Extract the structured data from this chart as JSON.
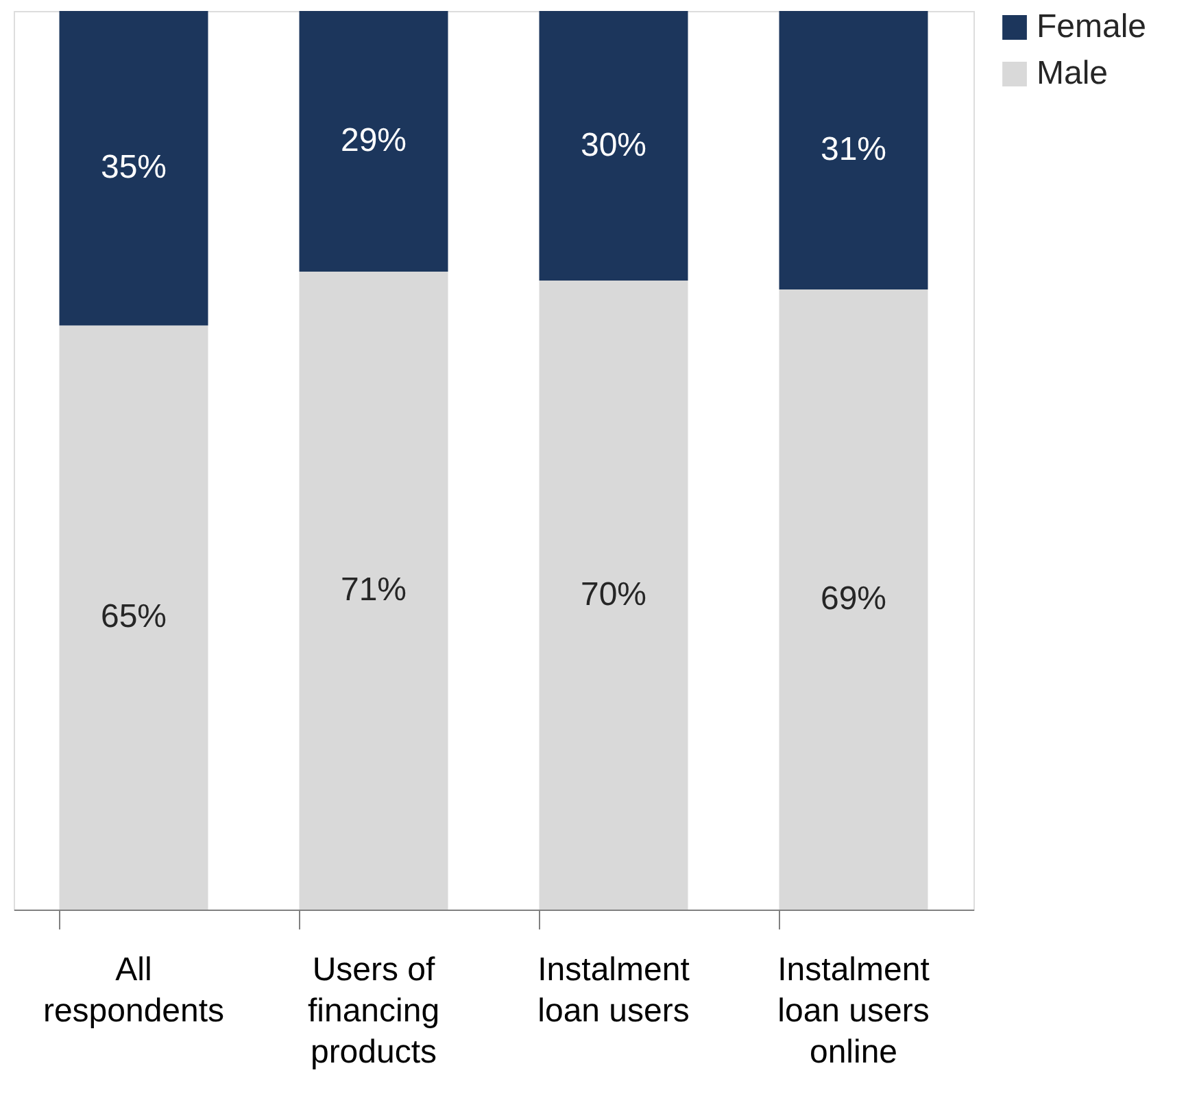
{
  "chart_data": {
    "type": "bar",
    "stacked": true,
    "legend": "right",
    "categories": [
      "All respondents",
      "Users of financing products",
      "Instalment loan users",
      "Instalment loan users online"
    ],
    "series": [
      {
        "name": "Male",
        "color": "#d9d9d9",
        "values": [
          65,
          71,
          70,
          69
        ],
        "value_labels": [
          "65%",
          "71%",
          "70%",
          "69%"
        ]
      },
      {
        "name": "Female",
        "color": "#1c365c",
        "values": [
          35,
          29,
          30,
          31
        ],
        "value_labels": [
          "35%",
          "29%",
          "30%",
          "31%"
        ]
      }
    ]
  }
}
